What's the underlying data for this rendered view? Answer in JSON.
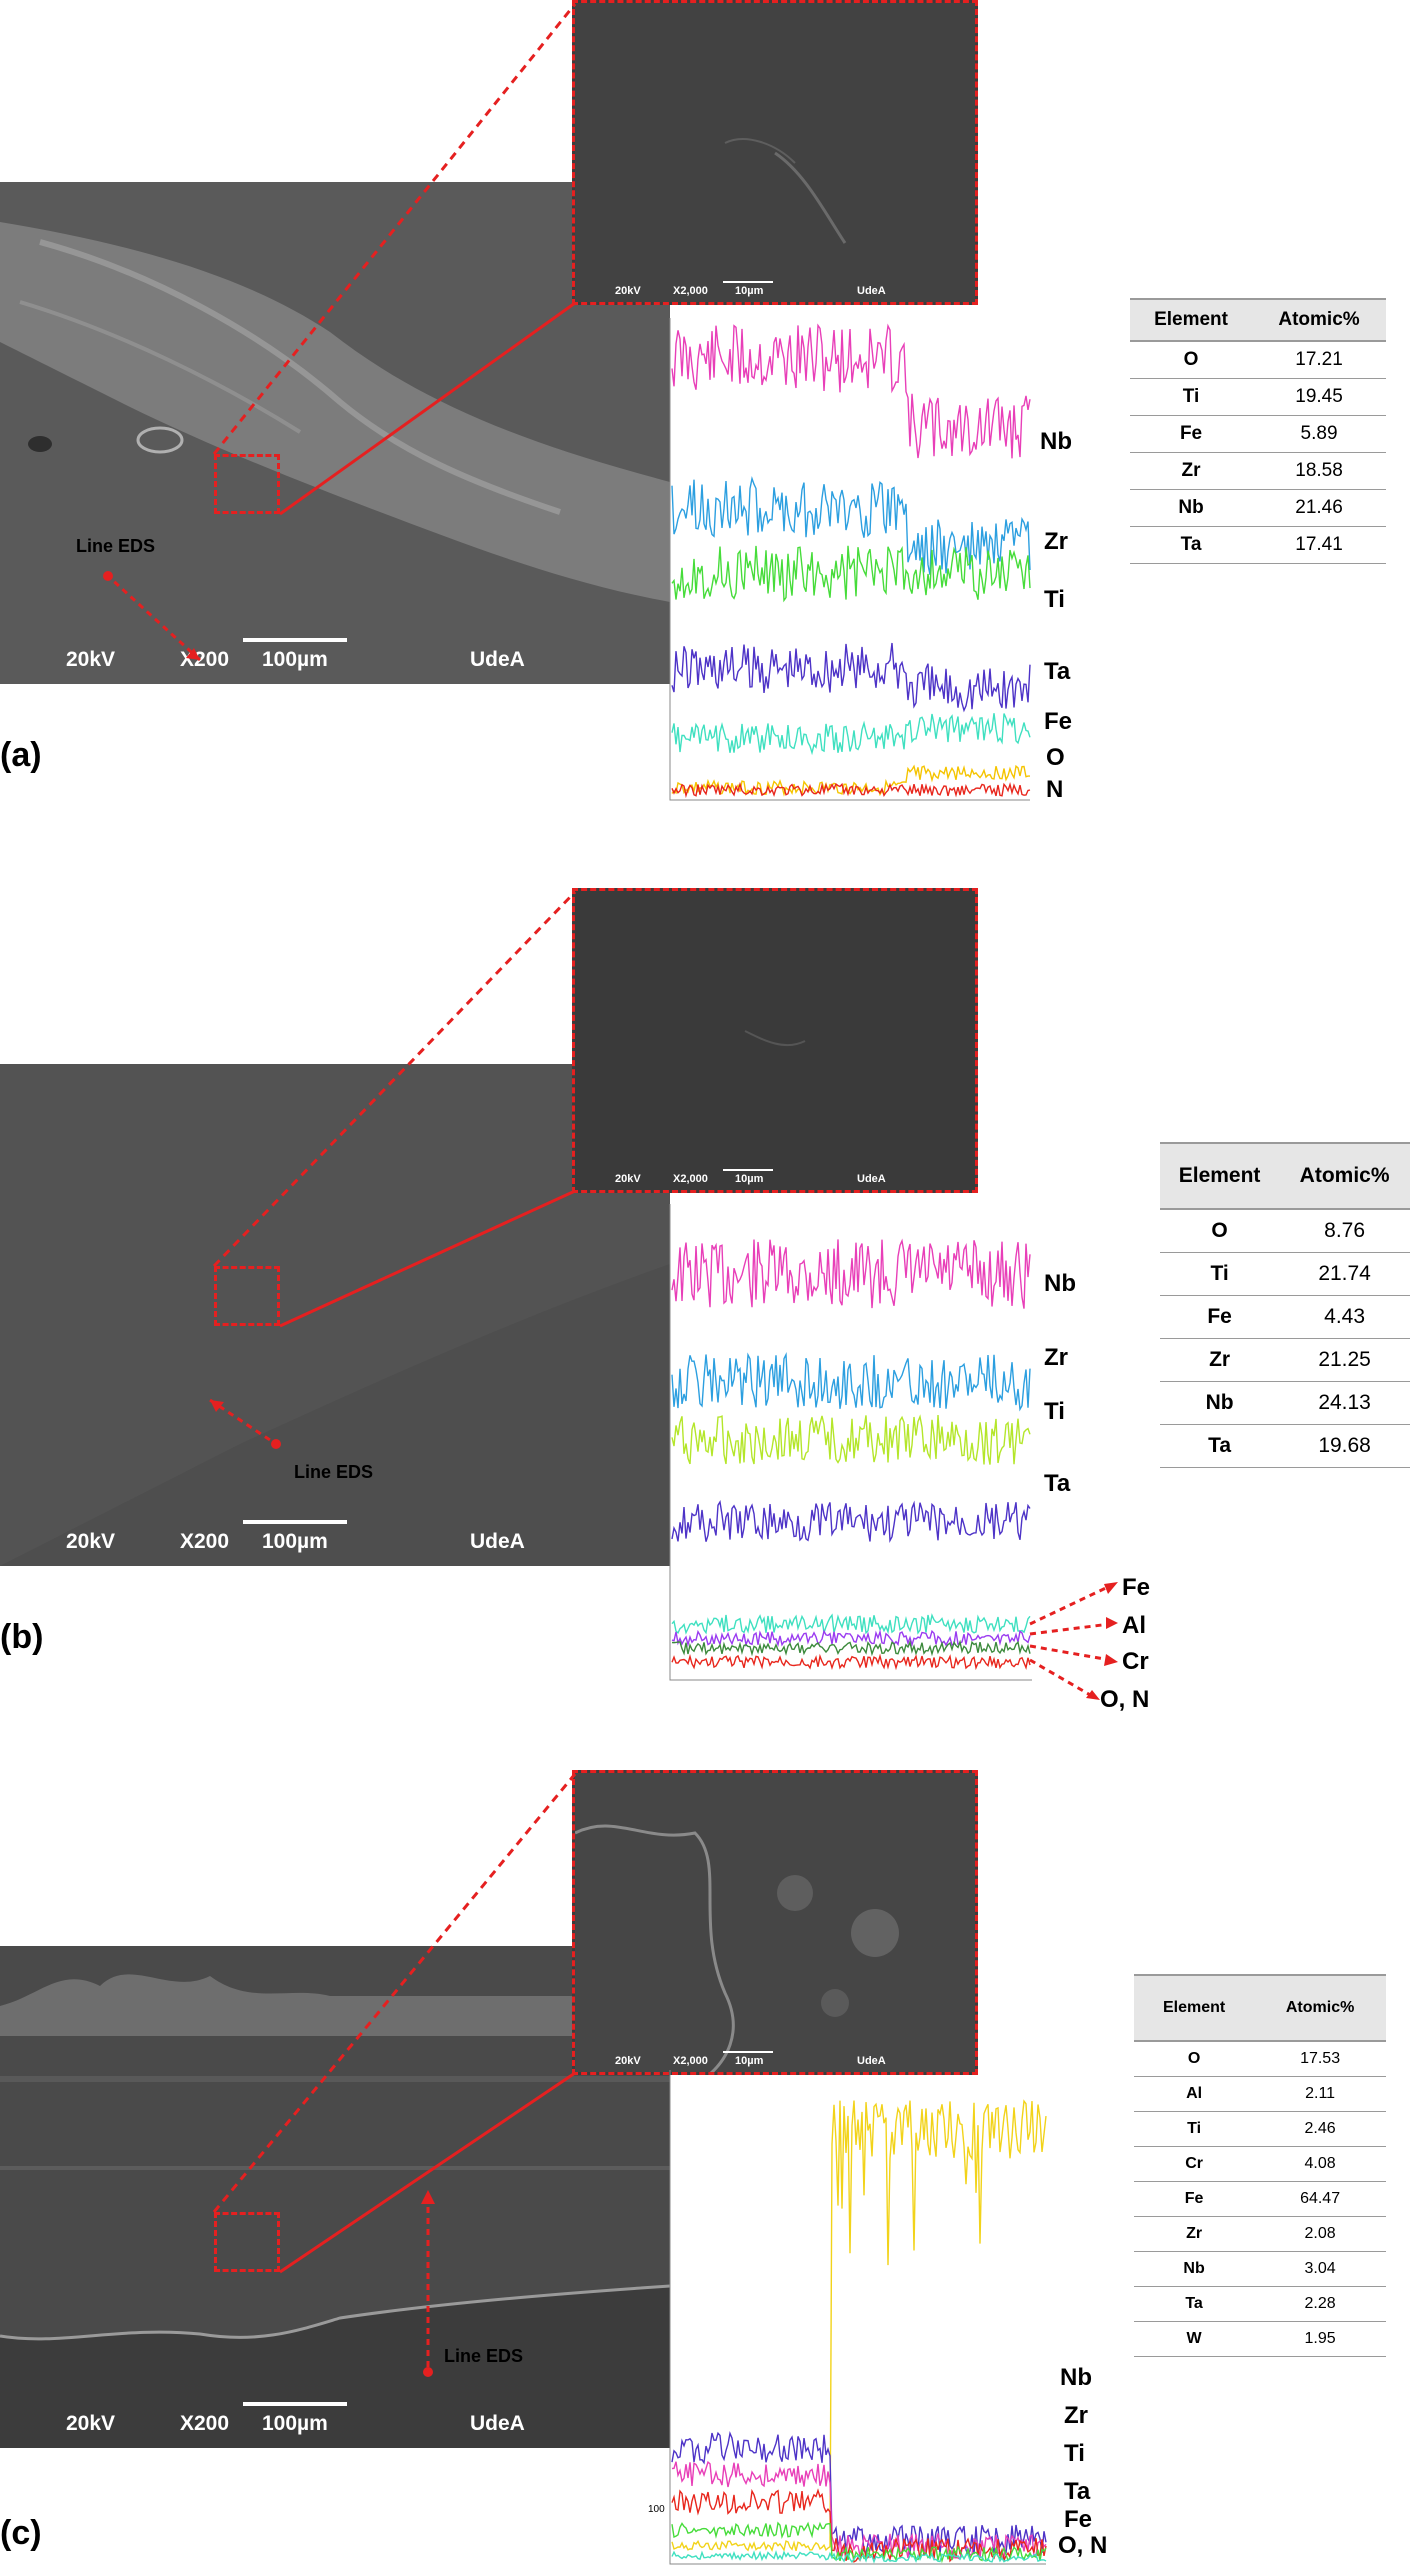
{
  "panels": [
    {
      "label": "(a)",
      "sem": {
        "kv": "20kV",
        "mag": "X200",
        "scale": "100µm",
        "org": "UdeA",
        "line_eds": "Line EDS"
      },
      "inset": {
        "kv": "20kV",
        "mag": "X2,000",
        "scale": "10µm",
        "org": "UdeA"
      },
      "series_labels": [
        "Nb",
        "Zr",
        "Ti",
        "Ta",
        "Fe",
        "O",
        "N"
      ],
      "table": {
        "headers": [
          "Element",
          "Atomic%"
        ],
        "rows": [
          [
            "O",
            "17.21"
          ],
          [
            "Ti",
            "19.45"
          ],
          [
            "Fe",
            "5.89"
          ],
          [
            "Zr",
            "18.58"
          ],
          [
            "Nb",
            "21.46"
          ],
          [
            "Ta",
            "17.41"
          ]
        ]
      }
    },
    {
      "label": "(b)",
      "sem": {
        "kv": "20kV",
        "mag": "X200",
        "scale": "100µm",
        "org": "UdeA",
        "line_eds": "Line EDS"
      },
      "inset": {
        "kv": "20kV",
        "mag": "X2,000",
        "scale": "10µm",
        "org": "UdeA"
      },
      "series_labels": [
        "Nb",
        "Zr",
        "Ti",
        "Ta",
        "Fe",
        "Al",
        "Cr",
        "O, N"
      ],
      "table": {
        "headers": [
          "Element",
          "Atomic%"
        ],
        "rows": [
          [
            "O",
            "8.76"
          ],
          [
            "Ti",
            "21.74"
          ],
          [
            "Fe",
            "4.43"
          ],
          [
            "Zr",
            "21.25"
          ],
          [
            "Nb",
            "24.13"
          ],
          [
            "Ta",
            "19.68"
          ]
        ]
      }
    },
    {
      "label": "(c)",
      "sem": {
        "kv": "20kV",
        "mag": "X200",
        "scale": "100µm",
        "org": "UdeA",
        "line_eds": "Line EDS"
      },
      "inset": {
        "kv": "20kV",
        "mag": "X2,000",
        "scale": "10µm",
        "org": "UdeA"
      },
      "series_labels": [
        "Nb",
        "Zr",
        "Ti",
        "Ta",
        "Fe",
        "O, N"
      ],
      "axis_tick": "100",
      "table": {
        "headers": [
          "Element",
          "Atomic%"
        ],
        "rows": [
          [
            "O",
            "17.53"
          ],
          [
            "Al",
            "2.11"
          ],
          [
            "Ti",
            "2.46"
          ],
          [
            "Cr",
            "4.08"
          ],
          [
            "Fe",
            "64.47"
          ],
          [
            "Zr",
            "2.08"
          ],
          [
            "Nb",
            "3.04"
          ],
          [
            "Ta",
            "2.28"
          ],
          [
            "W",
            "1.95"
          ]
        ]
      }
    }
  ],
  "colors": {
    "Nb": "#e83fb8",
    "Zr": "#2c9fe0",
    "Ti": "#46dc3a",
    "Ti_b": "#b4e62a",
    "Ta": "#4d33c7",
    "Fe": "#3fe0c0",
    "O": "#f5c400",
    "N": "#e8261c",
    "Al": "#9a3bf0",
    "Cr": "#3c8a3c",
    "Fe_c": "#f2d31a",
    "highlight": "#e52020"
  }
}
